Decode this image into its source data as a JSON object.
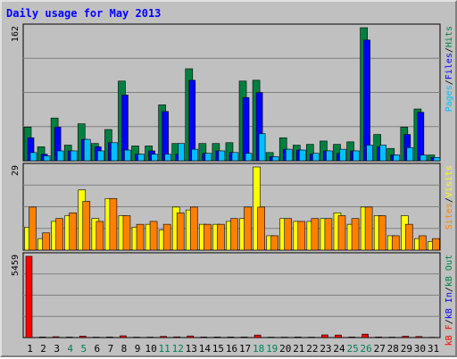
{
  "title": "Daily usage for May 2013",
  "colors": {
    "hits": "#008040",
    "files": "#0000ff",
    "pages": "#00c0ff",
    "visits": "#ffff00",
    "sites": "#ff8000",
    "kb": "#ff0000",
    "weekend_day": "#00805c",
    "weekday_day": "#000000"
  },
  "panels": {
    "top": {
      "max_label": "162",
      "legend": [
        {
          "text": "Pages",
          "color": "#00c0ff"
        },
        {
          "text": "/",
          "color": "#000000"
        },
        {
          "text": "Files",
          "color": "#0000ff"
        },
        {
          "text": "/",
          "color": "#000000"
        },
        {
          "text": "Hits",
          "color": "#008040"
        }
      ]
    },
    "middle": {
      "max_label": "29",
      "legend": [
        {
          "text": "Sites",
          "color": "#ff8000"
        },
        {
          "text": "/",
          "color": "#000000"
        },
        {
          "text": "Visits",
          "color": "#ffff00"
        }
      ]
    },
    "bottom": {
      "max_label": "5459",
      "legend": [
        {
          "text": "kB F",
          "color": "#ff0000"
        },
        {
          "text": "/",
          "color": "#000000"
        },
        {
          "text": "kB In",
          "color": "#0000ff"
        },
        {
          "text": "/",
          "color": "#000000"
        },
        {
          "text": "kB Out",
          "color": "#008040"
        }
      ]
    }
  },
  "chart_data": {
    "type": "bar",
    "title": "Daily usage for May 2013",
    "x": [
      "1",
      "2",
      "3",
      "4",
      "5",
      "6",
      "7",
      "8",
      "9",
      "10",
      "11",
      "12",
      "13",
      "14",
      "15",
      "16",
      "17",
      "18",
      "19",
      "20",
      "21",
      "22",
      "23",
      "24",
      "25",
      "26",
      "27",
      "28",
      "29",
      "30",
      "31"
    ],
    "weekend_days": [
      "4",
      "5",
      "11",
      "12",
      "18",
      "19",
      "25",
      "26"
    ],
    "series": [
      {
        "name": "Hits",
        "panel": "top",
        "max": 162,
        "values": [
          41,
          17,
          52,
          19,
          45,
          21,
          38,
          97,
          18,
          18,
          68,
          21,
          112,
          21,
          21,
          22,
          97,
          98,
          10,
          28,
          19,
          20,
          24,
          20,
          23,
          162,
          32,
          15,
          41,
          63,
          7
        ]
      },
      {
        "name": "Files",
        "panel": "top",
        "max": 162,
        "values": [
          28,
          8,
          41,
          12,
          26,
          17,
          22,
          80,
          8,
          12,
          60,
          8,
          98,
          9,
          12,
          10,
          77,
          83,
          5,
          14,
          13,
          8,
          12,
          9,
          12,
          147,
          17,
          7,
          32,
          59,
          4
        ]
      },
      {
        "name": "Pages",
        "panel": "top",
        "max": 162,
        "values": [
          10,
          6,
          12,
          12,
          26,
          12,
          22,
          13,
          8,
          8,
          8,
          21,
          14,
          9,
          12,
          10,
          9,
          33,
          5,
          14,
          13,
          9,
          12,
          14,
          12,
          19,
          19,
          7,
          16,
          7,
          4
        ]
      },
      {
        "name": "Visits",
        "panel": "middle",
        "max": 29,
        "values": [
          8,
          4,
          10,
          12,
          21,
          11,
          18,
          12,
          8,
          9,
          7,
          15,
          14,
          9,
          9,
          10,
          11,
          29,
          5,
          11,
          10,
          10,
          11,
          13,
          9,
          15,
          12,
          5,
          12,
          4,
          3
        ]
      },
      {
        "name": "Sites",
        "panel": "middle",
        "max": 29,
        "values": [
          15,
          6,
          11,
          13,
          17,
          10,
          18,
          12,
          9,
          10,
          9,
          13,
          15,
          9,
          9,
          11,
          15,
          15,
          5,
          11,
          10,
          11,
          11,
          12,
          11,
          15,
          12,
          5,
          9,
          5,
          4
        ]
      },
      {
        "name": "kB F",
        "panel": "bottom",
        "max": 5459,
        "values": [
          5459,
          40,
          60,
          35,
          100,
          30,
          40,
          120,
          30,
          30,
          80,
          50,
          110,
          40,
          40,
          40,
          40,
          170,
          30,
          30,
          40,
          30,
          180,
          170,
          40,
          230,
          40,
          30,
          90,
          70,
          20
        ]
      }
    ]
  }
}
